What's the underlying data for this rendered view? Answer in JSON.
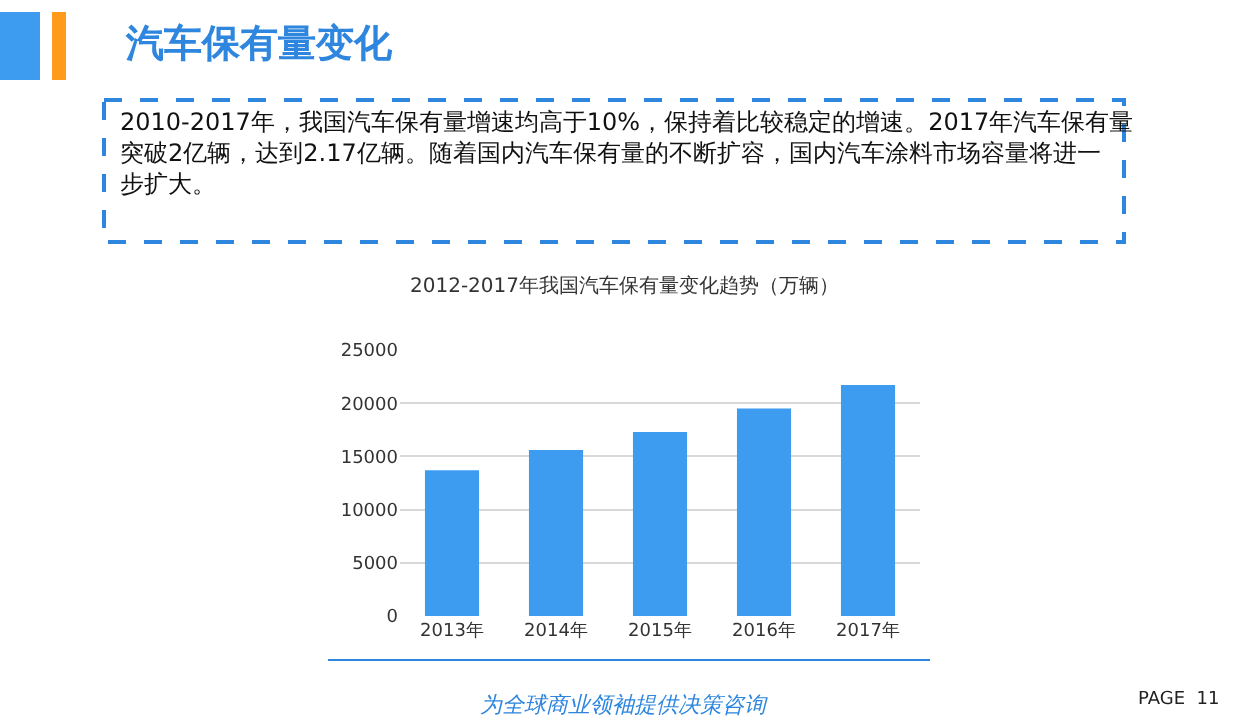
{
  "chart_data": {
    "type": "bar",
    "title": "汽车保有量变化",
    "subtitle": "2012-2017年我国汽车保有量变化趋势（万辆）",
    "categories": [
      "2013年",
      "2014年",
      "2015年",
      "2016年",
      "2017年"
    ],
    "values": [
      13700,
      15600,
      17300,
      19500,
      21700
    ],
    "color": "#3d9cf0",
    "ylim": [
      0,
      25000
    ],
    "yticks": [
      0,
      5000,
      10000,
      15000,
      20000,
      25000
    ],
    "grid": "y",
    "annotations": [
      "2010-2017年，我国汽车保有量增速均高于10%，保持着比较稳定的增速。2017年汽车保有量突破2亿辆，达到2.17亿辆。随着国内汽车保有量的不断扩容，国内汽车涂料市场容量将进一步扩大。",
      "为全球商业领袖提供决策咨询",
      "PAGE  11"
    ]
  }
}
